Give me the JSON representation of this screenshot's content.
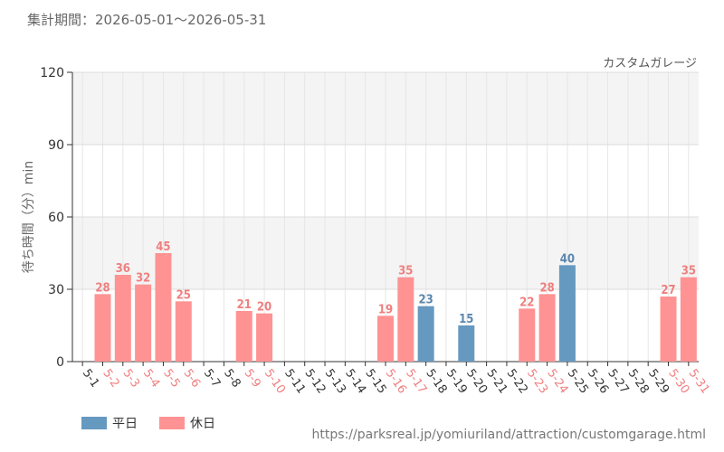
{
  "header": {
    "period": "集計期間：2026-05-01～2026-05-31",
    "attraction": "カスタムガレージ"
  },
  "colors": {
    "weekday": "#6699c0",
    "holiday": "#ff9393",
    "weekday_label": "#5b87ad",
    "holiday_label": "#ef7f7f",
    "axis_text": "#333333"
  },
  "chart_data": {
    "type": "bar",
    "title": "",
    "xlabel": "",
    "ylabel": "待ち時間（分）min",
    "ylim": [
      0,
      120
    ],
    "yticks": [
      0,
      30,
      60,
      90,
      120
    ],
    "grid": true,
    "legend_position": "bottom-left",
    "categories": [
      "5-1",
      "5-2",
      "5-3",
      "5-4",
      "5-5",
      "5-6",
      "5-7",
      "5-8",
      "5-9",
      "5-10",
      "5-11",
      "5-12",
      "5-13",
      "5-14",
      "5-15",
      "5-16",
      "5-17",
      "5-18",
      "5-19",
      "5-20",
      "5-21",
      "5-22",
      "5-23",
      "5-24",
      "5-25",
      "5-26",
      "5-27",
      "5-28",
      "5-29",
      "5-30",
      "5-31"
    ],
    "values": [
      null,
      28,
      36,
      32,
      45,
      25,
      null,
      null,
      21,
      20,
      null,
      null,
      null,
      null,
      null,
      19,
      35,
      23,
      null,
      15,
      null,
      null,
      22,
      28,
      40,
      null,
      null,
      null,
      null,
      27,
      35
    ],
    "day_type": [
      "weekday",
      "holiday",
      "holiday",
      "holiday",
      "holiday",
      "holiday",
      "weekday",
      "weekday",
      "holiday",
      "holiday",
      "weekday",
      "weekday",
      "weekday",
      "weekday",
      "weekday",
      "holiday",
      "holiday",
      "weekday",
      "weekday",
      "weekday",
      "weekday",
      "weekday",
      "holiday",
      "holiday",
      "weekday",
      "weekday",
      "weekday",
      "weekday",
      "weekday",
      "holiday",
      "holiday"
    ],
    "legend": [
      {
        "key": "weekday",
        "label": "平日"
      },
      {
        "key": "holiday",
        "label": "休日"
      }
    ]
  },
  "footer": {
    "source": "https://parksreal.jp/yomiuriland/attraction/customgarage.html"
  }
}
